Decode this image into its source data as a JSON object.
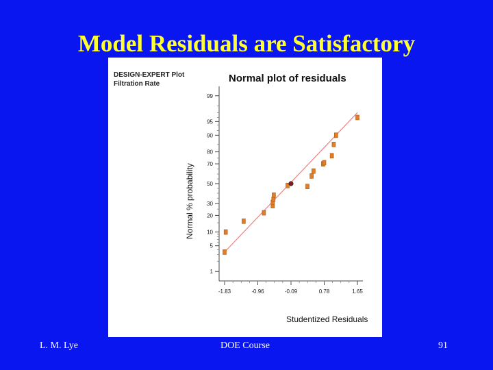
{
  "slide": {
    "title": "Model Residuals are Satisfactory",
    "footer_left": "L. M. Lye",
    "footer_center": "DOE Course",
    "footer_right": "91"
  },
  "colors": {
    "background": "#0a16f0",
    "title": "#ffff33",
    "point_fill": "#e07d28",
    "highlight_point": "#8a1a1a",
    "fit_line": "#f08080"
  },
  "chart_data": {
    "type": "scatter",
    "software_label": "DESIGN-EXPERT Plot",
    "response_label": "Filtration Rate",
    "title": "Normal plot of residuals",
    "xlabel": "Studentized Residuals",
    "ylabel": "Normal % probability",
    "x_ticks": [
      "-1.83",
      "-0.96",
      "-0.09",
      "0.78",
      "1.65"
    ],
    "y_ticks": [
      "1",
      "5",
      "10",
      "20",
      "30",
      "50",
      "70",
      "80",
      "90",
      "95",
      "99"
    ],
    "xlim": [
      -1.83,
      1.65
    ],
    "ylim": [
      0.5,
      99.5
    ],
    "y_scale": "normal-probability",
    "grid": false,
    "fit_line": {
      "from": [
        -1.83,
        3.5
      ],
      "to": [
        1.65,
        97
      ]
    },
    "series": [
      {
        "points": [
          {
            "x": -1.83,
            "y": 3.5
          },
          {
            "x": -1.8,
            "y": 10
          },
          {
            "x": -1.33,
            "y": 16
          },
          {
            "x": -0.8,
            "y": 22
          },
          {
            "x": -0.57,
            "y": 28
          },
          {
            "x": -0.57,
            "y": 31
          },
          {
            "x": -0.55,
            "y": 34
          },
          {
            "x": -0.54,
            "y": 38
          },
          {
            "x": -0.18,
            "y": 48
          },
          {
            "x": -0.09,
            "y": 50,
            "highlight": true
          },
          {
            "x": 0.34,
            "y": 47
          },
          {
            "x": 0.45,
            "y": 58
          },
          {
            "x": 0.5,
            "y": 63
          },
          {
            "x": 0.75,
            "y": 70
          },
          {
            "x": 0.78,
            "y": 71
          },
          {
            "x": 0.98,
            "y": 77
          },
          {
            "x": 1.03,
            "y": 85
          },
          {
            "x": 1.09,
            "y": 90
          },
          {
            "x": 1.65,
            "y": 96
          }
        ]
      }
    ]
  }
}
